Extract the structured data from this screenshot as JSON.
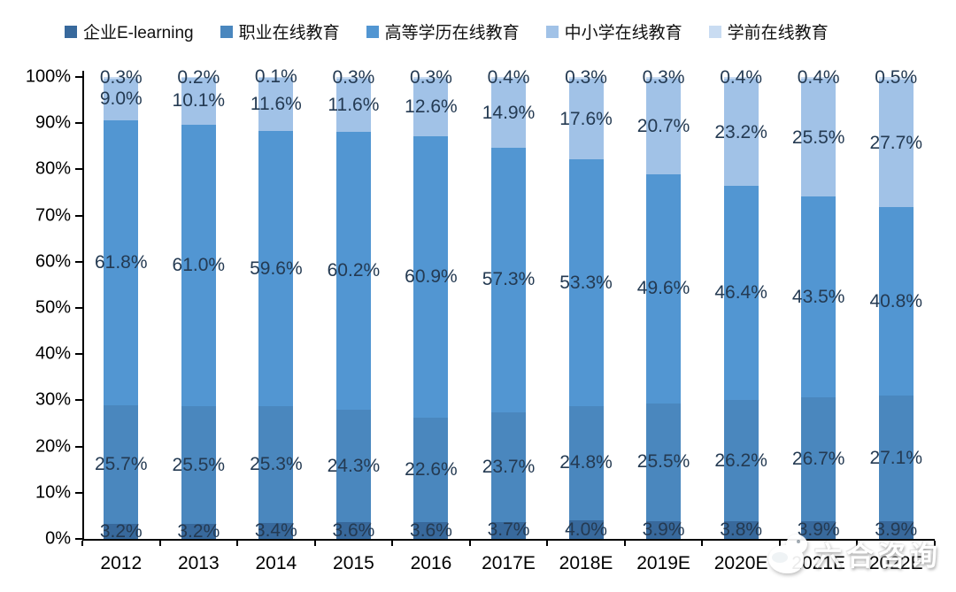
{
  "chart_data": {
    "type": "bar",
    "subtype": "stacked-100-percent",
    "title": "",
    "categories": [
      "2012",
      "2013",
      "2014",
      "2015",
      "2016",
      "2017E",
      "2018E",
      "2019E",
      "2020E",
      "2021E",
      "2022E"
    ],
    "series": [
      {
        "name": "企业E-learning",
        "color": "#38699C",
        "values": [
          3.2,
          3.2,
          3.4,
          3.6,
          3.6,
          3.7,
          4.0,
          3.9,
          3.8,
          3.9,
          3.9
        ]
      },
      {
        "name": "职业在线教育",
        "color": "#4A87BE",
        "values": [
          25.7,
          25.5,
          25.3,
          24.3,
          22.6,
          23.7,
          24.8,
          25.5,
          26.2,
          26.7,
          27.1
        ]
      },
      {
        "name": "高等学历在线教育",
        "color": "#5296D2",
        "values": [
          61.8,
          61.0,
          59.6,
          60.2,
          60.9,
          57.3,
          53.3,
          49.6,
          46.4,
          43.5,
          40.8
        ]
      },
      {
        "name": "中小学在线教育",
        "color": "#A1C2E7",
        "values": [
          9.0,
          10.1,
          11.6,
          11.6,
          12.6,
          14.9,
          17.6,
          20.7,
          23.2,
          25.5,
          27.7
        ]
      },
      {
        "name": "学前在线教育",
        "color": "#C9DCF2",
        "values": [
          0.3,
          0.2,
          0.1,
          0.3,
          0.3,
          0.4,
          0.3,
          0.3,
          0.4,
          0.4,
          0.5
        ]
      }
    ],
    "data_labels": true,
    "label_format": "one-decimal-percent",
    "ylabel": "",
    "xlabel": "",
    "ylim": [
      0,
      100
    ],
    "y_axis_ticks": [
      "0%",
      "10%",
      "20%",
      "30%",
      "40%",
      "50%",
      "60%",
      "70%",
      "80%",
      "90%",
      "100%"
    ],
    "grid": false,
    "legend_position": "top"
  },
  "watermark": {
    "text": "六合咨询"
  },
  "colors": {
    "axis": "#000000",
    "data_label": "#243a52",
    "background": "#ffffff"
  }
}
